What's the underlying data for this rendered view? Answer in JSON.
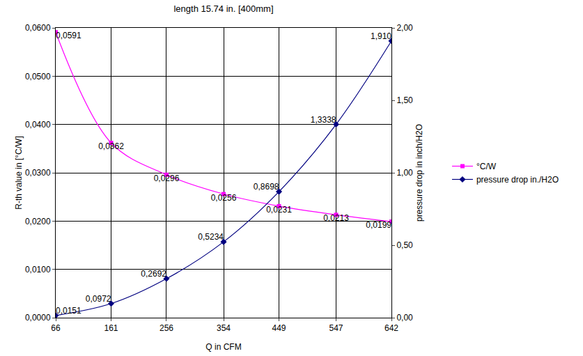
{
  "chart_data": {
    "type": "line",
    "title": "length 15.74 in. [400mm]",
    "x_label": "Q in CFM",
    "y_label": "R-th value in [°C/W]",
    "y2_label": "pressure drop in inch/H2O",
    "x": [
      66,
      161,
      256,
      354,
      449,
      547,
      642
    ],
    "xlim": [
      66,
      642
    ],
    "xticks": [
      66,
      161,
      256,
      354,
      449,
      547,
      642
    ],
    "ylim": [
      0,
      0.06
    ],
    "yticks": [
      {
        "value": 0,
        "label": "0,0000"
      },
      {
        "value": 0.01,
        "label": "0,0100"
      },
      {
        "value": 0.02,
        "label": "0,0200"
      },
      {
        "value": 0.03,
        "label": "0,0300"
      },
      {
        "value": 0.04,
        "label": "0,0400"
      },
      {
        "value": 0.05,
        "label": "0,0500"
      },
      {
        "value": 0.06,
        "label": "0,0600"
      }
    ],
    "y2lim": [
      0,
      2
    ],
    "y2ticks": [
      {
        "value": 0,
        "label": "0,00"
      },
      {
        "value": 0.5,
        "label": "0,50"
      },
      {
        "value": 1,
        "label": "1,00"
      },
      {
        "value": 1.5,
        "label": "1,50"
      },
      {
        "value": 2,
        "label": "2,00"
      }
    ],
    "grid": true,
    "legend": "right",
    "data_labels": true,
    "series": [
      {
        "name": "°C/W",
        "color": "#ff00ff",
        "marker": "square",
        "line_style": "smooth",
        "values": [
          0.0591,
          0.0362,
          0.0296,
          0.0256,
          0.0231,
          0.0213,
          0.0199
        ],
        "value_labels": [
          "0,0591",
          "0,0362",
          "0,0296",
          "0,0256",
          "0,0231",
          "0,0213",
          "0,0199"
        ]
      },
      {
        "name": "pressure drop in./H2O",
        "color": "#000080",
        "marker": "diamond",
        "line_style": "smooth",
        "axis": "y2",
        "values": [
          0.0151,
          0.0972,
          0.2692,
          0.5234,
          0.8698,
          1.3338,
          1.91
        ],
        "value_labels": [
          "0,0151",
          "0,0972",
          "0,2692",
          "0,5234",
          "0,8698",
          "1,3338",
          "1,910"
        ]
      }
    ]
  }
}
